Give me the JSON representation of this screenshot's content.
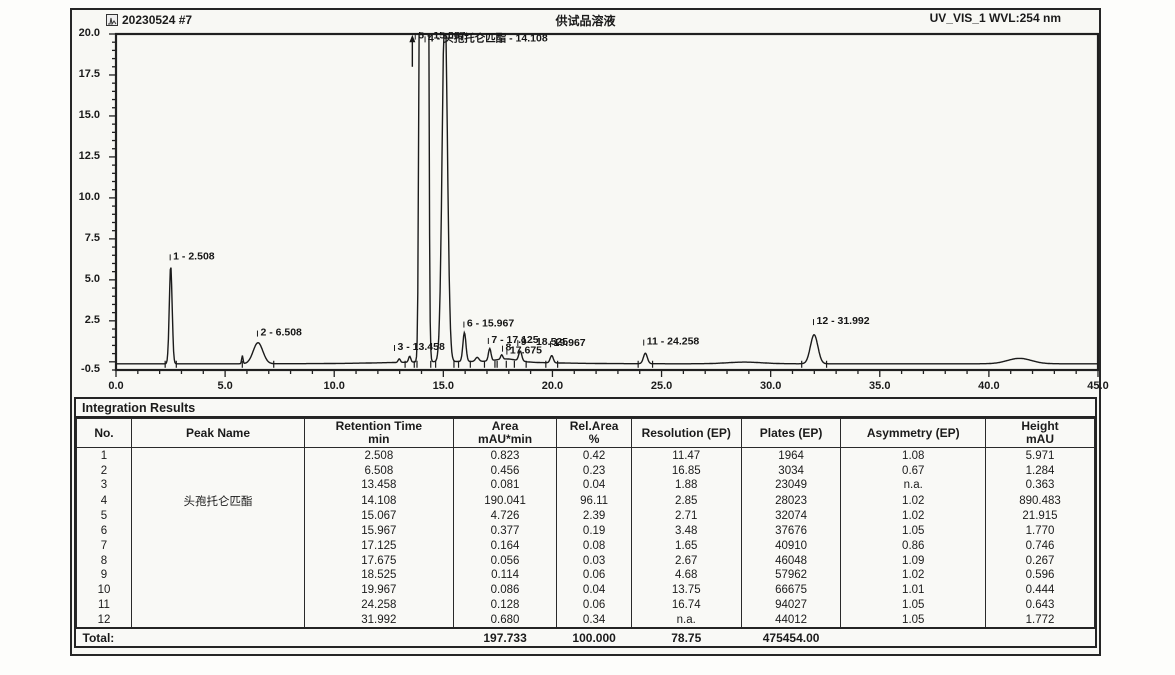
{
  "header": {
    "injection": "20230524 #7",
    "sample_name": "供试品溶液",
    "channel": "UV_VIS_1 WVL:254 nm"
  },
  "chart_data": {
    "type": "line",
    "title": "供试品溶液",
    "xlabel": "",
    "ylabel": "",
    "xlim": [
      0.0,
      45.0
    ],
    "ylim": [
      -0.5,
      20.0
    ],
    "grid": false,
    "x_ticks": [
      "0.0",
      "5.0",
      "10.0",
      "15.0",
      "20.0",
      "25.0",
      "30.0",
      "35.0",
      "40.0",
      "45.0"
    ],
    "y_ticks": [
      "20.0",
      "17.5",
      "15.0",
      "12.5",
      "10.0",
      "7.5",
      "5.0",
      "2.5",
      "-0.5"
    ],
    "baseline_level": -0.12,
    "series": [
      {
        "name": "UV_VIS_1 WVL:254 nm",
        "peaks": [
          {
            "no": 1,
            "rt": 2.508,
            "height": 5.971,
            "sigma": 0.065
          },
          {
            "no": 2,
            "rt": 6.508,
            "height": 1.284,
            "sigma": 0.22
          },
          {
            "no": 3,
            "rt": 13.458,
            "height": 0.363,
            "sigma": 0.05
          },
          {
            "no": 4,
            "rt": 14.108,
            "height": 890.483,
            "sigma": 0.085
          },
          {
            "no": 5,
            "rt": 15.067,
            "height": 21.915,
            "sigma": 0.12
          },
          {
            "no": 6,
            "rt": 15.967,
            "height": 1.77,
            "sigma": 0.07
          },
          {
            "no": 7,
            "rt": 17.125,
            "height": 0.746,
            "sigma": 0.06
          },
          {
            "no": 8,
            "rt": 17.675,
            "height": 0.267,
            "sigma": 0.05
          },
          {
            "no": 9,
            "rt": 18.525,
            "height": 0.596,
            "sigma": 0.07
          },
          {
            "no": 10,
            "rt": 19.967,
            "height": 0.444,
            "sigma": 0.07
          },
          {
            "no": 11,
            "rt": 24.258,
            "height": 0.643,
            "sigma": 0.09
          },
          {
            "no": 12,
            "rt": 31.992,
            "height": 1.772,
            "sigma": 0.17
          }
        ]
      }
    ],
    "baseline_features": [
      {
        "rt": 5.79,
        "h": 0.5,
        "sigma": 0.03
      },
      {
        "rt": 12.98,
        "h": 0.22,
        "sigma": 0.05
      },
      {
        "rt": 16.55,
        "h": 0.25,
        "sigma": 0.08
      },
      {
        "rt": 17.9,
        "h": 0.18,
        "sigma": 0.5
      },
      {
        "rt": 16.0,
        "h": 0.14,
        "sigma": 3.0
      },
      {
        "rt": 28.8,
        "h": 0.1,
        "sigma": 0.8
      },
      {
        "rt": 41.4,
        "h": 0.33,
        "sigma": 0.55
      }
    ],
    "peak_labels": [
      {
        "text": "1 - 2.508",
        "x": 2.62,
        "v": 6.25
      },
      {
        "text": "2 - 6.508",
        "x": 6.62,
        "v": 1.6
      },
      {
        "text": "3 - 13.458",
        "x": 12.9,
        "v": 0.72
      },
      {
        "text": "4 - 头孢托仑匹酯 - 14.108",
        "x": 14.3,
        "v": 19.55
      },
      {
        "text": "5 - 15.067",
        "x": 13.85,
        "v": 19.72
      },
      {
        "text": "6 - 15.967",
        "x": 16.08,
        "v": 2.15
      },
      {
        "text": "7 - 17.125",
        "x": 17.2,
        "v": 1.15
      },
      {
        "text": "8",
        "x": 17.85,
        "v": 0.68
      },
      {
        "text": "17.675",
        "x": 18.05,
        "v": 0.5
      },
      {
        "text": "9 - 18.525",
        "x": 18.55,
        "v": 1.02
      },
      {
        "text": "19.967",
        "x": 20.05,
        "v": 0.95
      },
      {
        "text": "11 - 24.258",
        "x": 24.32,
        "v": 1.05
      },
      {
        "text": "12 - 31.992",
        "x": 32.1,
        "v": 2.3
      }
    ]
  },
  "table": {
    "title": "Integration Results",
    "column_keys": [
      "no",
      "peak_name",
      "retention_time",
      "area",
      "rel_area",
      "resolution",
      "plates",
      "asymmetry",
      "height"
    ],
    "columns": [
      {
        "label": "No.",
        "sub": ""
      },
      {
        "label": "Peak Name",
        "sub": ""
      },
      {
        "label": "Retention Time",
        "sub": "min"
      },
      {
        "label": "Area",
        "sub": "mAU*min"
      },
      {
        "label": "Rel.Area",
        "sub": "%"
      },
      {
        "label": "Resolution (EP)",
        "sub": ""
      },
      {
        "label": "Plates (EP)",
        "sub": ""
      },
      {
        "label": "Asymmetry (EP)",
        "sub": ""
      },
      {
        "label": "Height",
        "sub": "mAU"
      }
    ],
    "rows": [
      [
        "1",
        "",
        "2.508",
        "0.823",
        "0.42",
        "11.47",
        "1964",
        "1.08",
        "5.971"
      ],
      [
        "2",
        "",
        "6.508",
        "0.456",
        "0.23",
        "16.85",
        "3034",
        "0.67",
        "1.284"
      ],
      [
        "3",
        "",
        "13.458",
        "0.081",
        "0.04",
        "1.88",
        "23049",
        "n.a.",
        "0.363"
      ],
      [
        "4",
        "头孢托仑匹酯",
        "14.108",
        "190.041",
        "96.11",
        "2.85",
        "28023",
        "1.02",
        "890.483"
      ],
      [
        "5",
        "",
        "15.067",
        "4.726",
        "2.39",
        "2.71",
        "32074",
        "1.02",
        "21.915"
      ],
      [
        "6",
        "",
        "15.967",
        "0.377",
        "0.19",
        "3.48",
        "37676",
        "1.05",
        "1.770"
      ],
      [
        "7",
        "",
        "17.125",
        "0.164",
        "0.08",
        "1.65",
        "40910",
        "0.86",
        "0.746"
      ],
      [
        "8",
        "",
        "17.675",
        "0.056",
        "0.03",
        "2.67",
        "46048",
        "1.09",
        "0.267"
      ],
      [
        "9",
        "",
        "18.525",
        "0.114",
        "0.06",
        "4.68",
        "57962",
        "1.02",
        "0.596"
      ],
      [
        "10",
        "",
        "19.967",
        "0.086",
        "0.04",
        "13.75",
        "66675",
        "1.01",
        "0.444"
      ],
      [
        "11",
        "",
        "24.258",
        "0.128",
        "0.06",
        "16.74",
        "94027",
        "1.05",
        "0.643"
      ],
      [
        "12",
        "",
        "31.992",
        "0.680",
        "0.34",
        "n.a.",
        "44012",
        "1.05",
        "1.772"
      ]
    ],
    "total": {
      "label": "Total:",
      "area": "197.733",
      "rel_area": "100.000",
      "resolution": "78.75",
      "plates": "475454.00"
    }
  }
}
